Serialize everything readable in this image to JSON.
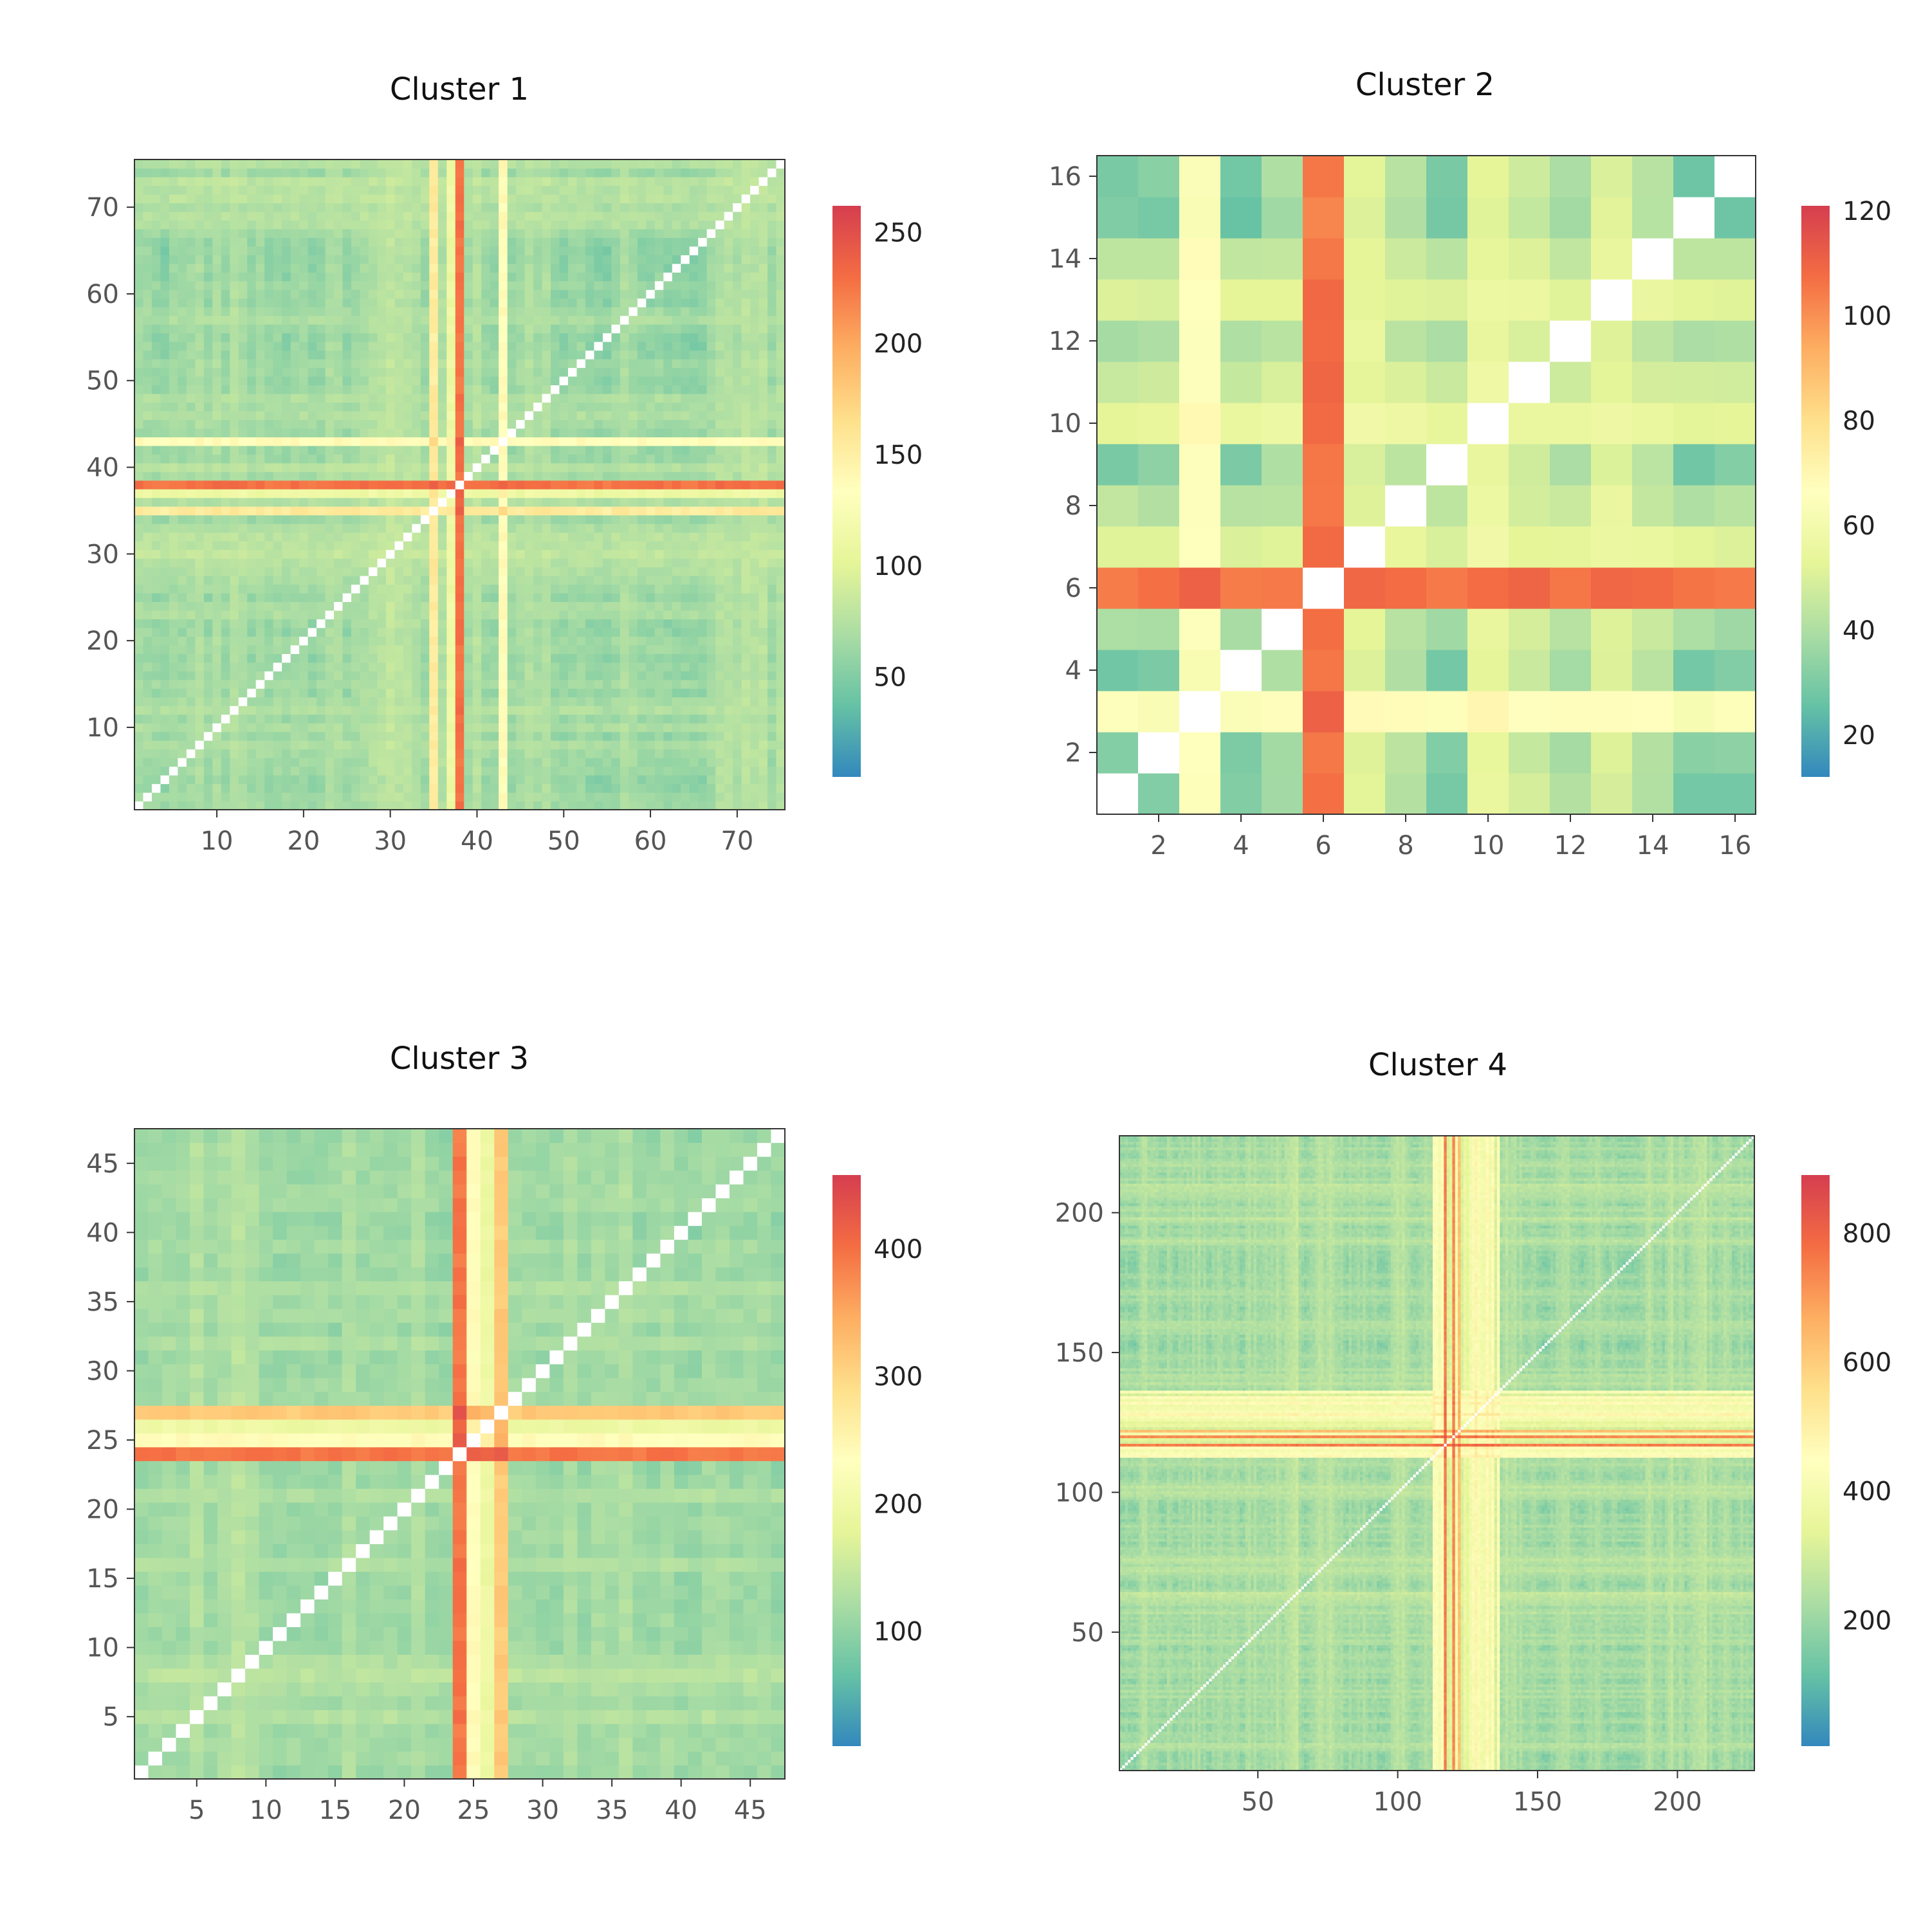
{
  "palette": [
    "#3288bd",
    "#66c2a5",
    "#abdda4",
    "#e6f598",
    "#ffffbf",
    "#fee08b",
    "#fdae61",
    "#f46d43",
    "#d53e4f"
  ],
  "diagonal_color": "#ffffff",
  "chart_data": [
    {
      "type": "heatmap",
      "title": "Cluster 1",
      "n": 75,
      "xlim": [
        0.5,
        75.5
      ],
      "ylim": [
        0.5,
        75.5
      ],
      "xticks": [
        10,
        20,
        30,
        40,
        50,
        60,
        70
      ],
      "yticks": [
        10,
        20,
        30,
        40,
        50,
        60,
        70
      ],
      "colorbar": {
        "min": 5,
        "max": 262,
        "ticks": [
          50,
          100,
          150,
          200,
          250
        ]
      },
      "diagonal": "white",
      "hot_index": 38,
      "profile_hints": "high rows/cols near 38, moderate bands near 35, 43"
    },
    {
      "type": "heatmap",
      "title": "Cluster 2",
      "n": 16,
      "xlim": [
        0.5,
        16.5
      ],
      "ylim": [
        0.5,
        16.5
      ],
      "xticks": [
        2,
        4,
        6,
        8,
        10,
        12,
        14,
        16
      ],
      "yticks": [
        2,
        4,
        6,
        8,
        10,
        12,
        14,
        16
      ],
      "colorbar": {
        "min": 12,
        "max": 121,
        "ticks": [
          20,
          40,
          60,
          80,
          100,
          120
        ]
      },
      "diagonal": "white",
      "hot_index": 6,
      "profile": [
        30,
        32,
        70,
        28,
        40,
        118,
        55,
        45,
        28,
        58,
        50,
        42,
        55,
        45,
        25,
        30
      ]
    },
    {
      "type": "heatmap",
      "title": "Cluster 3",
      "n": 47,
      "xlim": [
        0.5,
        47.5
      ],
      "ylim": [
        0.5,
        47.5
      ],
      "xticks": [
        5,
        10,
        15,
        20,
        25,
        30,
        35,
        40,
        45
      ],
      "yticks": [
        5,
        10,
        15,
        20,
        25,
        30,
        35,
        40,
        45
      ],
      "colorbar": {
        "min": 10,
        "max": 458,
        "ticks": [
          100,
          200,
          300,
          400
        ]
      },
      "diagonal": "white",
      "hot_index": 24
    },
    {
      "type": "heatmap",
      "title": "Cluster 4",
      "n": 227,
      "xlim": [
        0.5,
        227.5
      ],
      "ylim": [
        0.5,
        227.5
      ],
      "xticks": [
        50,
        100,
        150,
        200
      ],
      "yticks": [
        50,
        100,
        150,
        200
      ],
      "colorbar": {
        "min": 5,
        "max": 890,
        "ticks": [
          200,
          400,
          600,
          800
        ]
      },
      "diagonal": "white",
      "hot_index": 120
    }
  ]
}
